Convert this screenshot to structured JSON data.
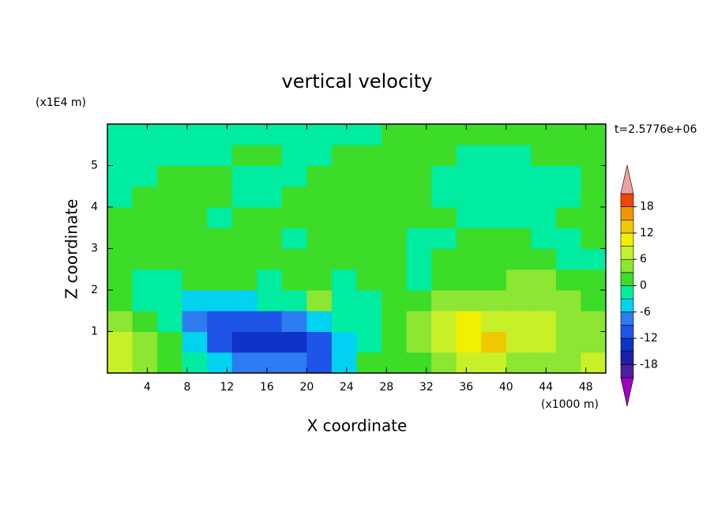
{
  "chart_data": {
    "type": "contour",
    "title": "vertical velocity",
    "y_unit": "(x1E4 m)",
    "x_unit": "(x1000 m)",
    "time_label": "t=2.5776e+06",
    "x_label": "X coordinate",
    "y_label": "Z coordinate",
    "xlim": [
      0,
      50
    ],
    "ylim": [
      0,
      6
    ],
    "xticks": [
      4,
      8,
      12,
      16,
      20,
      24,
      28,
      32,
      36,
      40,
      44,
      48
    ],
    "yticks": [
      1,
      2,
      3,
      4,
      5
    ],
    "x": [
      1.25,
      3.75,
      6.25,
      8.75,
      11.25,
      13.75,
      16.25,
      18.75,
      21.25,
      23.75,
      26.25,
      28.75,
      31.25,
      33.75,
      36.25,
      38.75,
      41.25,
      43.75,
      46.25,
      48.75
    ],
    "y": [
      0.25,
      0.75,
      1.25,
      1.75,
      2.25,
      2.75,
      3.25,
      3.75,
      4.25,
      4.75,
      5.25,
      5.75
    ],
    "z": [
      [
        8,
        4,
        1,
        -3,
        -5,
        -7,
        -8,
        -9,
        -10,
        -5,
        1,
        1,
        2,
        4,
        6,
        7,
        4,
        4,
        3,
        7
      ],
      [
        8,
        5,
        1,
        -6,
        -10,
        -14,
        -15,
        -13,
        -11,
        -4,
        -1,
        1,
        3,
        6,
        11,
        13,
        6,
        8,
        4,
        5
      ],
      [
        4,
        2,
        -3,
        -8,
        -11,
        -12,
        -10,
        -7,
        -4,
        -2,
        -1,
        1,
        4,
        6,
        9,
        7,
        7,
        7,
        4,
        3
      ],
      [
        2,
        -1,
        -3,
        -6,
        -6,
        -4,
        -3,
        -2,
        3,
        -3,
        -1,
        0.5,
        2,
        3,
        4,
        4,
        4,
        3,
        3,
        2
      ],
      [
        1,
        -2,
        -2,
        1,
        1,
        0,
        -1,
        1,
        1,
        -1,
        0.5,
        1,
        -1,
        1,
        2,
        1,
        3,
        3,
        2,
        1
      ],
      [
        1,
        2,
        1,
        1,
        1,
        1,
        0.5,
        1,
        1,
        0.5,
        1,
        1,
        -1,
        1,
        1,
        1,
        1,
        1,
        -1,
        -1
      ],
      [
        2,
        1,
        1,
        1,
        1,
        1,
        1,
        -1,
        1,
        1,
        1,
        1,
        -1,
        -1,
        1,
        1,
        1,
        -1,
        -1,
        1
      ],
      [
        1,
        1,
        1,
        1,
        -1,
        1,
        1,
        1,
        1,
        1,
        1,
        1,
        1,
        1,
        -1,
        -1,
        -1,
        -1,
        1,
        1
      ],
      [
        -1,
        1,
        1,
        1,
        1,
        -1,
        -1,
        1,
        1,
        1,
        1,
        1,
        1,
        -1,
        -1,
        -1,
        -1,
        -1,
        -1,
        1
      ],
      [
        -1,
        -1,
        1,
        1,
        1,
        -1,
        -1,
        -1,
        1,
        1,
        1,
        1,
        1,
        -1,
        -1,
        -1,
        -1,
        -1,
        -1,
        1
      ],
      [
        -1,
        -1,
        -1,
        -1,
        -1,
        1,
        1,
        -1,
        -1,
        1,
        1,
        1,
        1,
        1,
        -1,
        -1,
        -1,
        1,
        1,
        1
      ],
      [
        -1,
        -1,
        -1,
        -1,
        -1,
        -1,
        -1,
        -1,
        -1,
        -1,
        -1,
        1,
        1,
        1,
        1,
        1,
        1,
        1,
        1,
        1
      ]
    ],
    "levels": [
      -21,
      -18,
      -15,
      -12,
      -9,
      -6,
      -3,
      0,
      3,
      6,
      9,
      12,
      15,
      18,
      21
    ],
    "colors": [
      "#a000c0",
      "#501ea0",
      "#1e1ea8",
      "#0f32c8",
      "#1e55e6",
      "#2d7df0",
      "#00d2f0",
      "#00eca0",
      "#3cdc28",
      "#8ce632",
      "#c8f028",
      "#f0f000",
      "#f0c800",
      "#f09600",
      "#f04600",
      "#f0a0a0"
    ],
    "colorbar_ticks": [
      -18,
      -12,
      -6,
      0,
      6,
      12,
      18
    ]
  }
}
